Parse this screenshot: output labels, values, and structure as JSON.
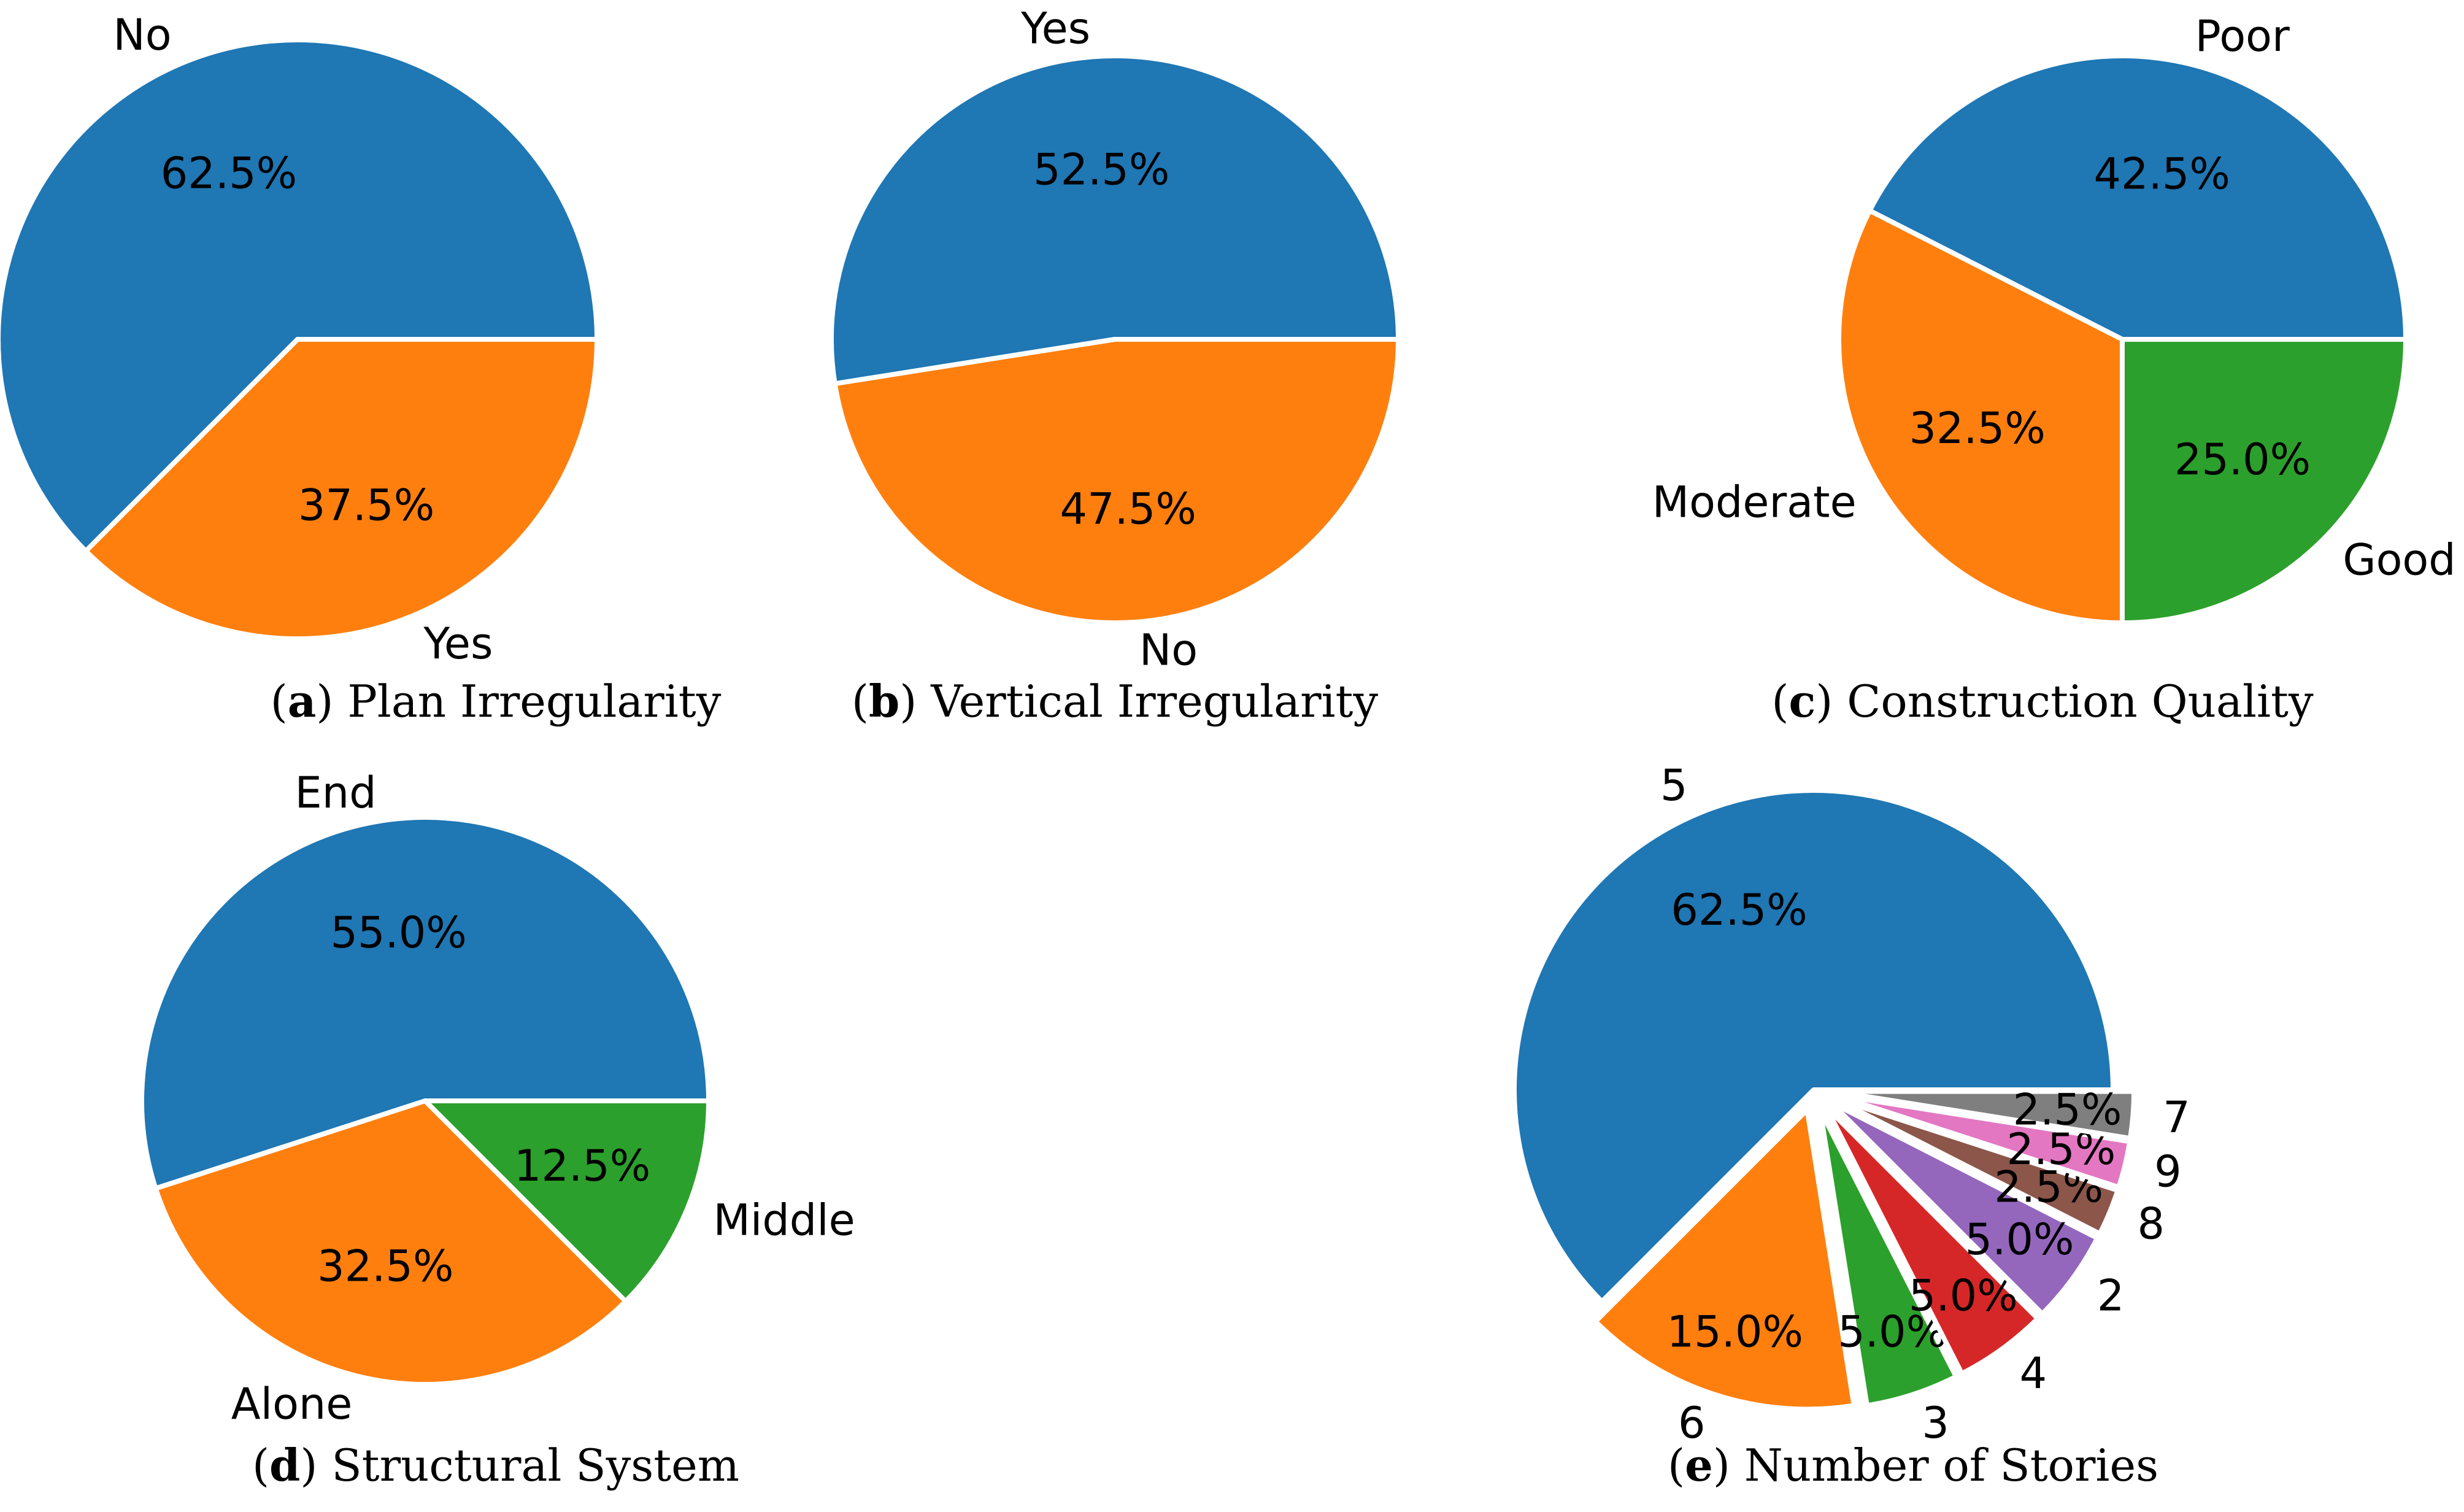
{
  "chart_data": [
    {
      "type": "pie",
      "caption": {
        "letter": "a",
        "text": "Plan Irregularity"
      },
      "slices": [
        {
          "label": "No",
          "value": 62.5,
          "pct_text": "62.5%",
          "color": "#1f77b4"
        },
        {
          "label": "Yes",
          "value": 37.5,
          "pct_text": "37.5%",
          "color": "#ff7f0e"
        }
      ]
    },
    {
      "type": "pie",
      "caption": {
        "letter": "b",
        "text": "Vertical Irregularity"
      },
      "slices": [
        {
          "label": "Yes",
          "value": 52.5,
          "pct_text": "52.5%",
          "color": "#1f77b4"
        },
        {
          "label": "No",
          "value": 47.5,
          "pct_text": "47.5%",
          "color": "#ff7f0e"
        }
      ]
    },
    {
      "type": "pie",
      "caption": {
        "letter": "c",
        "text": "Construction Quality"
      },
      "slices": [
        {
          "label": "Poor",
          "value": 42.5,
          "pct_text": "42.5%",
          "color": "#1f77b4"
        },
        {
          "label": "Moderate",
          "value": 32.5,
          "pct_text": "32.5%",
          "color": "#ff7f0e"
        },
        {
          "label": "Good",
          "value": 25.0,
          "pct_text": "25.0%",
          "color": "#2ca02c"
        }
      ]
    },
    {
      "type": "pie",
      "caption": {
        "letter": "d",
        "text": "Structural System"
      },
      "slices": [
        {
          "label": "End",
          "value": 55.0,
          "pct_text": "55.0%",
          "color": "#1f77b4"
        },
        {
          "label": "Alone",
          "value": 32.5,
          "pct_text": "32.5%",
          "color": "#ff7f0e"
        },
        {
          "label": "Middle",
          "value": 12.5,
          "pct_text": "12.5%",
          "color": "#2ca02c"
        }
      ]
    },
    {
      "type": "pie",
      "caption": {
        "letter": "e",
        "text": "Number of Stories"
      },
      "slices": [
        {
          "label": "5",
          "value": 62.5,
          "pct_text": "62.5%",
          "color": "#1f77b4"
        },
        {
          "label": "6",
          "value": 15.0,
          "pct_text": "15.0%",
          "color": "#ff7f0e"
        },
        {
          "label": "3",
          "value": 5.0,
          "pct_text": "5.0%",
          "color": "#2ca02c"
        },
        {
          "label": "4",
          "value": 5.0,
          "pct_text": "5.0%",
          "color": "#d62728"
        },
        {
          "label": "2",
          "value": 5.0,
          "pct_text": "5.0%",
          "color": "#9467bd"
        },
        {
          "label": "8",
          "value": 2.5,
          "pct_text": "2.5%",
          "color": "#8c564b"
        },
        {
          "label": "9",
          "value": 2.5,
          "pct_text": "2.5%",
          "color": "#e377c2"
        },
        {
          "label": "7",
          "value": 2.5,
          "pct_text": "2.5%",
          "color": "#7f7f7f"
        }
      ]
    }
  ]
}
